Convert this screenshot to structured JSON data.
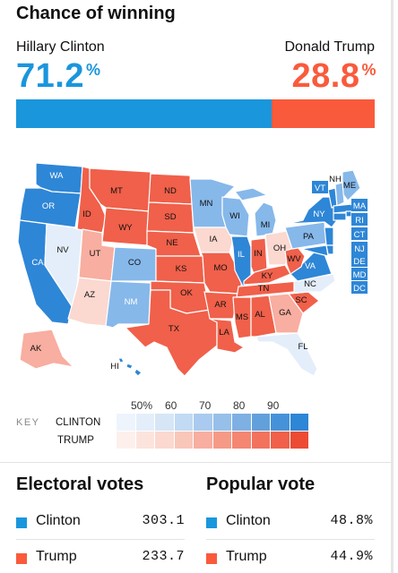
{
  "header": {
    "title": "Chance of winning",
    "left_candidate": "Hillary Clinton",
    "right_candidate": "Donald Trump",
    "left_pct": "71.2",
    "right_pct": "28.8",
    "pct_symbol": "%",
    "left_prob": 0.712,
    "right_prob": 0.288
  },
  "colors": {
    "clinton": "#1a96dc",
    "trump": "#fa5a3c",
    "strong_blue": "#2e86d6",
    "mid_blue": "#86b8ea",
    "light_blue": "#c2daf3",
    "pale_blue": "#e4eefa",
    "strong_red": "#f0604a",
    "light_red": "#f8aea0",
    "pale_red": "#fbd8d0"
  },
  "map": {
    "states": [
      "WA",
      "OR",
      "CA",
      "NV",
      "ID",
      "MT",
      "WY",
      "UT",
      "AZ",
      "CO",
      "NM",
      "ND",
      "SD",
      "NE",
      "KS",
      "OK",
      "TX",
      "MN",
      "IA",
      "MO",
      "AR",
      "LA",
      "WI",
      "IL",
      "MI",
      "IN",
      "OH",
      "KY",
      "TN",
      "MS",
      "AL",
      "GA",
      "FL",
      "SC",
      "NC",
      "VA",
      "WV",
      "PA",
      "NY",
      "ME",
      "VT",
      "NH",
      "MA",
      "RI",
      "CT",
      "NJ",
      "DE",
      "MD",
      "DC",
      "AK",
      "HI"
    ]
  },
  "key": {
    "label": "KEY",
    "ticks": [
      "50%",
      "60",
      "70",
      "80",
      "90"
    ],
    "clinton_label": "CLINTON",
    "trump_label": "TRUMP"
  },
  "electoral": {
    "title": "Electoral votes",
    "rows": [
      {
        "name": "Clinton",
        "value": "303.1"
      },
      {
        "name": "Trump",
        "value": "233.7"
      }
    ]
  },
  "popular": {
    "title": "Popular vote",
    "rows": [
      {
        "name": "Clinton",
        "value": "48.8%"
      },
      {
        "name": "Trump",
        "value": "44.9%"
      }
    ]
  }
}
